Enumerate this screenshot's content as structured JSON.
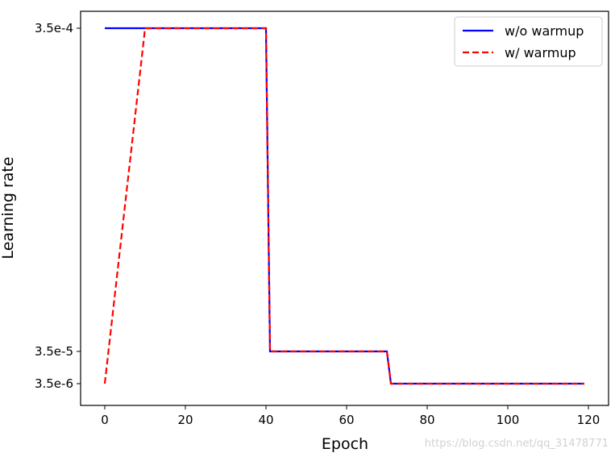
{
  "chart_data": {
    "type": "line",
    "xlabel": "Epoch",
    "ylabel": "Learning rate",
    "xlim": [
      -6,
      126
    ],
    "x_ticks": [
      0,
      20,
      40,
      60,
      80,
      100,
      120
    ],
    "y_ticks": [
      {
        "value": 0.00035,
        "label": "3.5e-4"
      },
      {
        "value": 3.5e-05,
        "label": "3.5e-5"
      },
      {
        "value": 3.5e-06,
        "label": "3.5e-6"
      }
    ],
    "grid": false,
    "legend_position": "top-right",
    "series": [
      {
        "name": "w/o warmup",
        "color": "#0000ff",
        "style": "solid",
        "points": [
          [
            0,
            0.00035
          ],
          [
            40,
            0.00035
          ],
          [
            41,
            3.5e-05
          ],
          [
            70,
            3.5e-05
          ],
          [
            71,
            3.5e-06
          ],
          [
            119,
            3.5e-06
          ]
        ]
      },
      {
        "name": "w/ warmup",
        "color": "#ff0000",
        "style": "dashed",
        "points": [
          [
            0,
            3.5e-06
          ],
          [
            10,
            0.00035
          ],
          [
            40,
            0.00035
          ],
          [
            41,
            3.5e-05
          ],
          [
            70,
            3.5e-05
          ],
          [
            71,
            3.5e-06
          ],
          [
            119,
            3.5e-06
          ]
        ]
      }
    ]
  },
  "watermark": "https://blog.csdn.net/qq_31478771"
}
